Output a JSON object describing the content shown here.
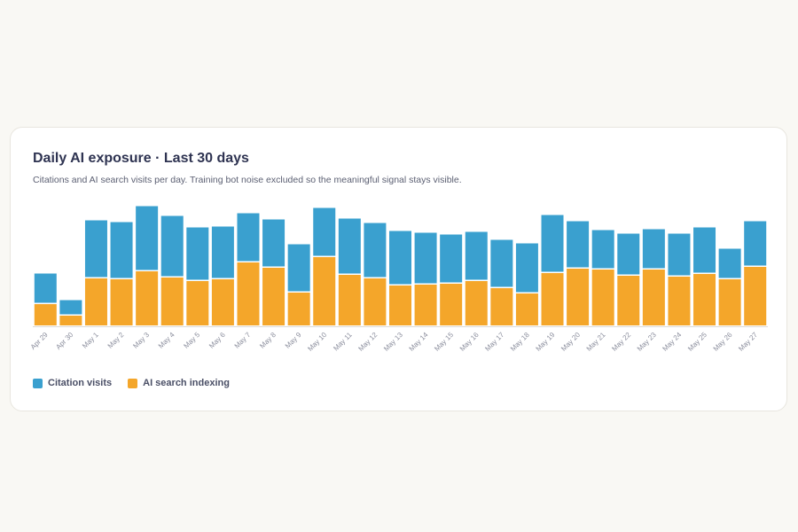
{
  "card": {
    "title": "Daily AI exposure · Last 30 days",
    "subtitle": "Citations and AI search visits per day. Training bot noise excluded so the meaningful signal stays visible."
  },
  "colors": {
    "citation": "#3aa0cf",
    "indexing": "#f4a62a",
    "axis": "#dddbd5",
    "tick": "#8a8d9c"
  },
  "chart_data": {
    "type": "bar",
    "stacked": true,
    "categories": [
      "Apr 29",
      "Apr 30",
      "May 1",
      "May 2",
      "May 3",
      "May 4",
      "May 5",
      "May 6",
      "May 7",
      "May 8",
      "May 9",
      "May 10",
      "May 11",
      "May 12",
      "May 13",
      "May 14",
      "May 15",
      "May 16",
      "May 17",
      "May 18",
      "May 19",
      "May 20",
      "May 21",
      "May 22",
      "May 23",
      "May 24",
      "May 25",
      "May 26",
      "May 27"
    ],
    "series": [
      {
        "name": "AI search indexing",
        "values": [
          24,
          11,
          53,
          52,
          61,
          54,
          50,
          52,
          71,
          65,
          37,
          77,
          57,
          53,
          45,
          46,
          47,
          50,
          42,
          36,
          59,
          64,
          63,
          56,
          63,
          55,
          58,
          52,
          66
        ]
      },
      {
        "name": "Citation visits",
        "values": [
          33,
          16,
          64,
          63,
          72,
          68,
          59,
          58,
          54,
          53,
          53,
          54,
          62,
          61,
          60,
          57,
          54,
          54,
          53,
          55,
          64,
          52,
          43,
          46,
          44,
          47,
          51,
          33,
          50
        ]
      }
    ],
    "ylim": [
      0,
      135
    ],
    "grid": false,
    "legend": "bottom-left"
  }
}
